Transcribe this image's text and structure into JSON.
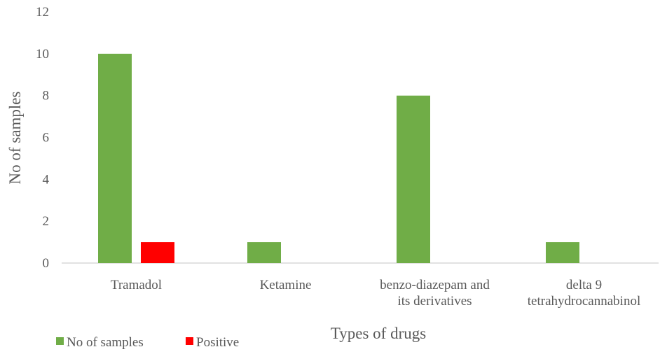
{
  "chart_data": {
    "type": "bar",
    "categories": [
      [
        "Tramadol"
      ],
      [
        "Ketamine"
      ],
      [
        "benzo-diazepam and",
        "its derivatives"
      ],
      [
        "delta 9",
        "tetrahydrocannabinol"
      ]
    ],
    "series": [
      {
        "name": "No of samples",
        "values": [
          10,
          1,
          8,
          1
        ],
        "color": "#70AD47"
      },
      {
        "name": "Positive",
        "values": [
          1,
          0,
          0,
          0
        ],
        "color": "#FF0000"
      }
    ],
    "y_ticks": [
      "0",
      "2",
      "4",
      "6",
      "8",
      "10",
      "12"
    ],
    "ylim": [
      0,
      12
    ],
    "xlabel": "Types of drugs",
    "ylabel": "No of samples",
    "grid": false,
    "legend_position": "bottom-left"
  }
}
